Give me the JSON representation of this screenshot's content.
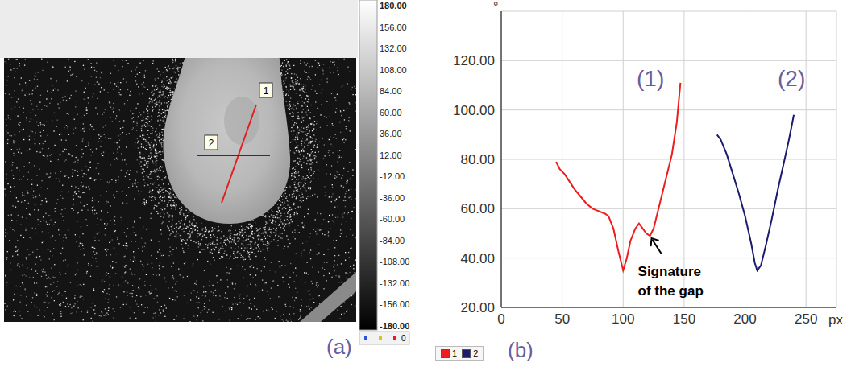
{
  "panel_a": {
    "label": "(a)",
    "profiles": [
      {
        "name": "1",
        "color": "#e02020"
      },
      {
        "name": "2",
        "color": "#2a2a78"
      }
    ],
    "colorbar": {
      "range": [
        -180,
        180
      ],
      "ticks": [
        {
          "value": 180,
          "label": "180.00"
        },
        {
          "value": 156,
          "label": "156.00"
        },
        {
          "value": 132,
          "label": "132.00"
        },
        {
          "value": 108,
          "label": "108.00"
        },
        {
          "value": 84,
          "label": "84.00"
        },
        {
          "value": 60,
          "label": "60.00"
        },
        {
          "value": 36,
          "label": "36.00"
        },
        {
          "value": 12,
          "label": "12.00"
        },
        {
          "value": -12,
          "label": "-12.00"
        },
        {
          "value": -36,
          "label": "-36.00"
        },
        {
          "value": -60,
          "label": "-60.00"
        },
        {
          "value": -84,
          "label": "-84.00"
        },
        {
          "value": -108,
          "label": "-108.00"
        },
        {
          "value": -132,
          "label": "-132.00"
        },
        {
          "value": -156,
          "label": "-156.00"
        },
        {
          "value": -180,
          "label": "-180.00"
        }
      ],
      "footer": "0"
    }
  },
  "chart_data": {
    "type": "line",
    "label": "(b)",
    "y_label": "°",
    "x_label": "px",
    "xlim": [
      0,
      275
    ],
    "ylim": [
      20,
      140
    ],
    "xticks": [
      0,
      50,
      100,
      150,
      200,
      250
    ],
    "yticks": [
      {
        "value": 20,
        "label": "20.00"
      },
      {
        "value": 40,
        "label": "40.00"
      },
      {
        "value": 60,
        "label": "60.00"
      },
      {
        "value": 80,
        "label": "80.00"
      },
      {
        "value": 100,
        "label": "100.00"
      },
      {
        "value": 120,
        "label": "120.00"
      }
    ],
    "grid": true,
    "legend": "bottom",
    "series": [
      {
        "name": "1",
        "annotation": "(1)",
        "color": "#ee1c1c",
        "x": [
          45,
          48,
          52,
          56,
          60,
          65,
          70,
          75,
          80,
          85,
          88,
          92,
          96,
          100,
          103,
          106,
          110,
          113,
          116,
          119,
          122,
          125,
          130,
          135,
          140,
          144,
          147
        ],
        "values": [
          79,
          76,
          74,
          71,
          68,
          65,
          62,
          60,
          59,
          58,
          57,
          52,
          43,
          35,
          40,
          47,
          52,
          54,
          52,
          50,
          49,
          52,
          62,
          72,
          82,
          95,
          111
        ]
      },
      {
        "name": "2",
        "annotation": "(2)",
        "color": "#1c1c6e",
        "x": [
          177,
          180,
          185,
          190,
          195,
          200,
          205,
          208,
          210,
          213,
          217,
          222,
          227,
          232,
          236,
          240
        ],
        "values": [
          90,
          88,
          82,
          74,
          66,
          57,
          46,
          38,
          35,
          37,
          45,
          56,
          68,
          79,
          88,
          98
        ]
      }
    ],
    "annotations": [
      {
        "text": "Signature of the gap",
        "x": 122,
        "y": 49
      }
    ]
  }
}
